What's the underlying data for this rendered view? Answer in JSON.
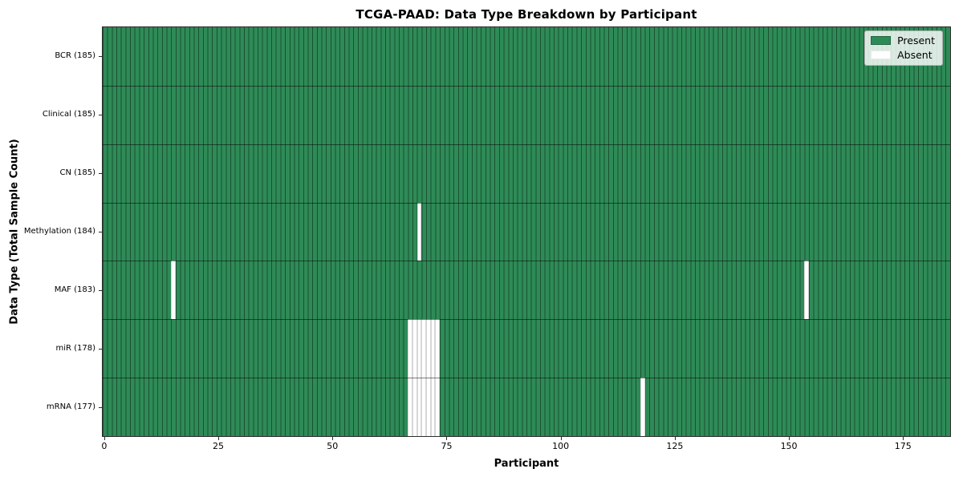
{
  "chart_data": {
    "type": "heatmap",
    "title": "TCGA-PAAD: Data Type Breakdown by Participant",
    "xlabel": "Participant",
    "ylabel": "Data Type (Total Sample Count)",
    "x_ticks": [
      0,
      25,
      50,
      75,
      100,
      125,
      150,
      175
    ],
    "x_range": [
      -0.5,
      185.5
    ],
    "n_slots": 186,
    "grid": false,
    "legend": {
      "position": "upper right",
      "items": [
        {
          "label": "Present",
          "color": "#2e8b57"
        },
        {
          "label": "Absent",
          "color": "#ffffff"
        }
      ]
    },
    "colors": {
      "present": "#2e8b57",
      "absent": "#ffffff",
      "bar_edge": "rgba(0,0,0,0.42)"
    },
    "rows": [
      {
        "label": "BCR (185)",
        "total_samples": 185,
        "absent_participants": []
      },
      {
        "label": "Clinical (185)",
        "total_samples": 185,
        "absent_participants": []
      },
      {
        "label": "CN (185)",
        "total_samples": 185,
        "absent_participants": []
      },
      {
        "label": "Methylation (184)",
        "total_samples": 184,
        "absent_participants": [
          69
        ]
      },
      {
        "label": "MAF (183)",
        "total_samples": 183,
        "absent_participants": [
          15,
          154
        ]
      },
      {
        "label": "miR (178)",
        "total_samples": 178,
        "absent_participants": [
          67,
          68,
          69,
          70,
          71,
          72,
          73
        ]
      },
      {
        "label": "mRNA (177)",
        "total_samples": 177,
        "absent_participants": [
          67,
          68,
          69,
          70,
          71,
          72,
          73,
          118
        ]
      }
    ]
  }
}
